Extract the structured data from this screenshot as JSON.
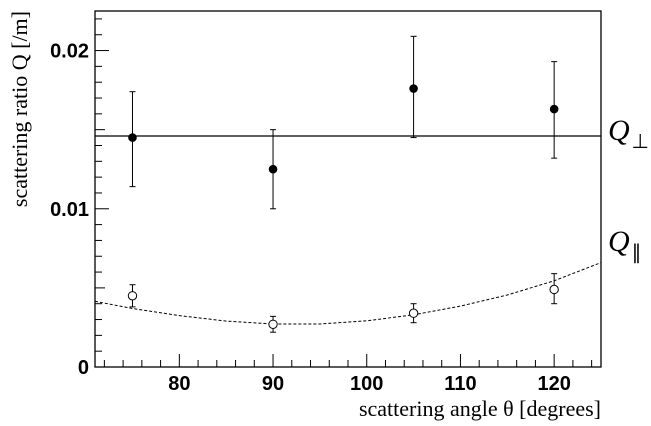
{
  "chart_data": {
    "type": "scatter",
    "xlabel": "scattering angle θ [degrees]",
    "ylabel": "scattering ratio Q [/m]",
    "xlim": [
      71,
      125
    ],
    "ylim": [
      0,
      0.0225
    ],
    "xticks": [
      {
        "value": 80,
        "label": "80"
      },
      {
        "value": 90,
        "label": "90"
      },
      {
        "value": 100,
        "label": "100"
      },
      {
        "value": 110,
        "label": "110"
      },
      {
        "value": 120,
        "label": "120"
      }
    ],
    "yticks": [
      {
        "value": 0,
        "label": "0"
      },
      {
        "value": 0.01,
        "label": "0.01"
      },
      {
        "value": 0.02,
        "label": "0.02"
      }
    ],
    "grid": false,
    "legend": "none",
    "series": [
      {
        "label": "Q",
        "subscript": "⊥",
        "marker": "filled-circle",
        "points": [
          {
            "x": 75,
            "y": 0.0145,
            "yerr": [
              0.0114,
              0.0174
            ]
          },
          {
            "x": 90,
            "y": 0.0125,
            "yerr": [
              0.01,
              0.015
            ]
          },
          {
            "x": 105,
            "y": 0.0176,
            "yerr": [
              0.0145,
              0.0209
            ]
          },
          {
            "x": 120,
            "y": 0.0163,
            "yerr": [
              0.0132,
              0.0193
            ]
          }
        ],
        "fit": {
          "style": "solid",
          "constant": 0.0146
        }
      },
      {
        "label": "Q",
        "subscript": "∥",
        "marker": "open-circle",
        "points": [
          {
            "x": 75,
            "y": 0.0045,
            "yerr": [
              0.0038,
              0.0052
            ]
          },
          {
            "x": 90,
            "y": 0.0027,
            "yerr": [
              0.0022,
              0.0032
            ]
          },
          {
            "x": 105,
            "y": 0.0034,
            "yerr": [
              0.0028,
              0.004
            ]
          },
          {
            "x": 120,
            "y": 0.0049,
            "yerr": [
              0.004,
              0.0059
            ]
          }
        ],
        "fit": {
          "style": "dashed",
          "x": [
            71,
            75,
            80,
            85,
            90,
            95,
            100,
            105,
            110,
            115,
            120,
            125
          ],
          "y": [
            0.00415,
            0.0037,
            0.00325,
            0.0029,
            0.00272,
            0.00272,
            0.00292,
            0.0033,
            0.00385,
            0.00455,
            0.00545,
            0.0066
          ]
        }
      }
    ]
  }
}
